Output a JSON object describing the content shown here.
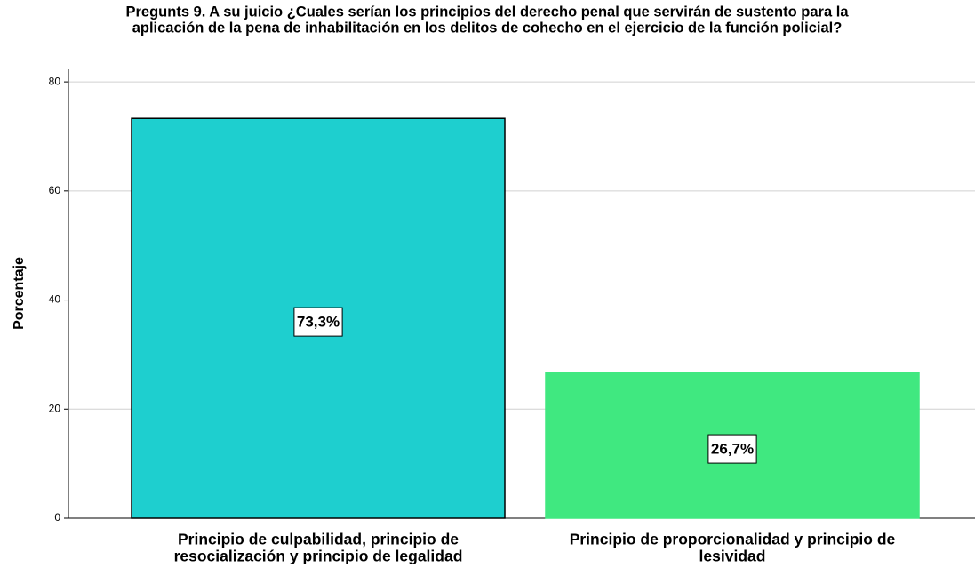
{
  "chart_data": {
    "type": "bar",
    "title": [
      "Pregunts 9. A su juicio ¿Cuales serían los principios del derecho penal que servirán de sustento para la",
      "aplicación de la pena de inhabilitación en los delitos de cohecho en el ejercicio de la función policial?"
    ],
    "ylabel": "Porcentaje",
    "categories": [
      [
        "Principio de culpabilidad, principio de",
        "resocialización y principio de legalidad"
      ],
      [
        "Principio de proporcionalidad y principio de",
        "lesividad"
      ]
    ],
    "values": [
      73.3,
      26.7
    ],
    "value_labels": [
      "73,3%",
      "26,7%"
    ],
    "colors": [
      "#1ecfcf",
      "#40e880"
    ],
    "edgecolors": [
      "#000000",
      "#40e880"
    ],
    "ylim": [
      0,
      82.3
    ],
    "yticks": [
      0,
      20,
      40,
      60,
      80
    ],
    "grid": true
  }
}
